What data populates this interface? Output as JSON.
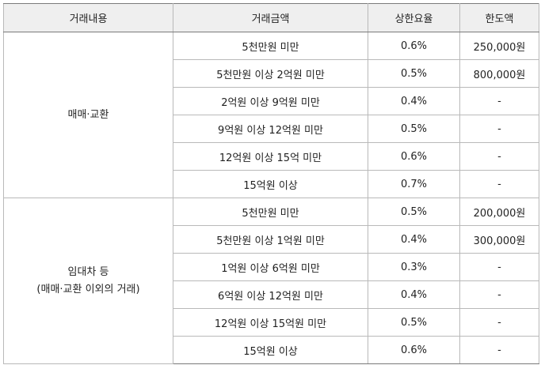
{
  "headers": [
    "거래내용",
    "거래금액",
    "상한요율",
    "한도액"
  ],
  "groups": [
    {
      "label_lines": [
        "매매·교환"
      ],
      "rows": [
        {
          "amount": "5천만원 미만",
          "rate": "0.6%",
          "limit": "250,000원"
        },
        {
          "amount": "5천만원 이상 2억원 미만",
          "rate": "0.5%",
          "limit": "800,000원"
        },
        {
          "amount": "2억원 이상 9억원 미만",
          "rate": "0.4%",
          "limit": "-"
        },
        {
          "amount": "9억원 이상 12억원 미만",
          "rate": "0.5%",
          "limit": "-"
        },
        {
          "amount": "12억원 이상 15억 미만",
          "rate": "0.6%",
          "limit": "-"
        },
        {
          "amount": "15억원 이상",
          "rate": "0.7%",
          "limit": "-"
        }
      ]
    },
    {
      "label_lines": [
        "임대차 등",
        "(매매·교환 이외의 거래)"
      ],
      "rows": [
        {
          "amount": "5천만원 미만",
          "rate": "0.5%",
          "limit": "200,000원"
        },
        {
          "amount": "5천만원 이상 1억원 미만",
          "rate": "0.4%",
          "limit": "300,000원"
        },
        {
          "amount": "1억원 이상 6억원 미만",
          "rate": "0.3%",
          "limit": "-"
        },
        {
          "amount": "6억원 이상 12억원 미만",
          "rate": "0.4%",
          "limit": "-"
        },
        {
          "amount": "12억원 이상 15억원 미만",
          "rate": "0.5%",
          "limit": "-"
        },
        {
          "amount": "15억원 이상",
          "rate": "0.6%",
          "limit": "-"
        }
      ]
    }
  ]
}
